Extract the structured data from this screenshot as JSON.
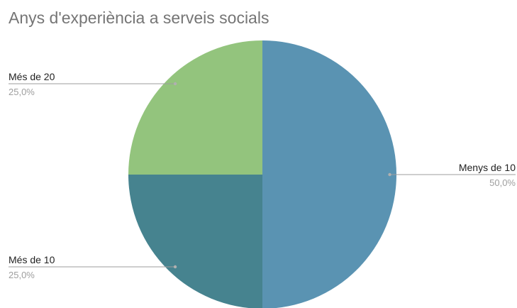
{
  "chart_data": {
    "type": "pie",
    "title": "Anys d'experiència a serveis socials",
    "slices": [
      {
        "label": "Menys de 10",
        "value": 50.0,
        "percent_label": "50,0%",
        "color": "#5a93b2"
      },
      {
        "label": "Més de 10",
        "value": 25.0,
        "percent_label": "25,0%",
        "color": "#46838f"
      },
      {
        "label": "Més de 20",
        "value": 25.0,
        "percent_label": "25,0%",
        "color": "#93c47d"
      }
    ],
    "start_angle_deg": 0,
    "direction": "clockwise",
    "legend": "none"
  }
}
